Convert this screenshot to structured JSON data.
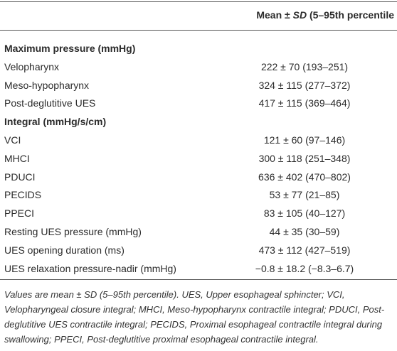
{
  "header": {
    "value_column": [
      "Mean ± ",
      "SD",
      " (5–95th percentile"
    ]
  },
  "sections": [
    {
      "title": "Maximum pressure (mmHg)",
      "rows": [
        [
          "Velopharynx",
          "222 ± 70 (193–251)"
        ],
        [
          "Meso-hypopharynx",
          "324 ± 115 (277–372)"
        ],
        [
          "Post-deglutitive UES",
          "417 ± 115 (369–464)"
        ]
      ]
    },
    {
      "title": "Integral (mmHg/s/cm)",
      "rows": [
        [
          "VCI",
          "121 ± 60 (97–146)"
        ],
        [
          "MHCI",
          "300 ± 118 (251–348)"
        ],
        [
          "PDUCI",
          "636 ± 402 (470–802)"
        ],
        [
          "PECIDS",
          "53 ± 77 (21–85)"
        ],
        [
          "PPECI",
          "83 ± 105 (40–127)"
        ],
        [
          "Resting UES pressure (mmHg)",
          "44 ± 35 (30–59)"
        ],
        [
          "UES opening duration (ms)",
          "473 ± 112 (427–519)"
        ],
        [
          "UES relaxation pressure-nadir (mmHg)",
          "−0.8 ± 18.2 (−8.3–6.7)"
        ]
      ]
    }
  ],
  "footnote": "Values are mean ± SD (5–95th percentile). UES, Upper esophageal sphincter; VCI, Velopharyngeal closure integral; MHCI, Meso-hypopharynx contractile integral; PDUCI, Post-deglutitive UES contractile integral; PECIDS, Proximal esophageal contractile integral during swallowing; PPECI, Post-deglutitive proximal esophageal contractile integral."
}
